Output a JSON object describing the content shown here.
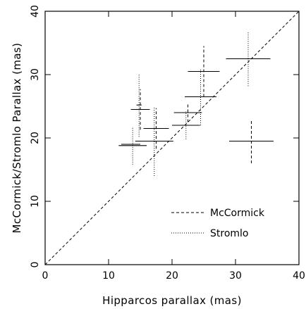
{
  "chart_data": {
    "type": "scatter",
    "xlabel": "Hipparcos parallax (mas)",
    "ylabel": "McCormick/Stromlo Parallax (mas)",
    "xlim": [
      0,
      40
    ],
    "ylim": [
      0,
      40
    ],
    "xticks": [
      0,
      10,
      20,
      30,
      40
    ],
    "yticks": [
      0,
      10,
      20,
      30,
      40
    ],
    "grid": false,
    "legend_position": "bottom-right",
    "reference_line": {
      "name": "y = x",
      "style": "dashed",
      "from": [
        0,
        0
      ],
      "to": [
        40,
        40
      ]
    },
    "series": [
      {
        "name": "McCormick",
        "line_style": "dashed",
        "points": [
          {
            "x": 15.0,
            "y": 24.5,
            "xerr": 1.5,
            "yerr": 3.2
          },
          {
            "x": 17.5,
            "y": 21.5,
            "xerr": 2.0,
            "yerr": 3.2
          },
          {
            "x": 22.5,
            "y": 24.0,
            "xerr": 2.2,
            "yerr": 1.5
          },
          {
            "x": 25.0,
            "y": 30.5,
            "xerr": 2.5,
            "yerr": 4.0
          },
          {
            "x": 32.5,
            "y": 19.5,
            "xerr": 3.5,
            "yerr": 3.5
          }
        ]
      },
      {
        "name": "Stromlo",
        "line_style": "dotted",
        "points": [
          {
            "x": 13.8,
            "y": 18.8,
            "xerr": 2.2,
            "yerr": 3.0
          },
          {
            "x": 17.2,
            "y": 19.5,
            "xerr": 3.0,
            "yerr": 5.5
          },
          {
            "x": 22.2,
            "y": 22.0,
            "xerr": 2.2,
            "yerr": 2.2
          },
          {
            "x": 24.5,
            "y": 26.5,
            "xerr": 2.5,
            "yerr": 4.5
          },
          {
            "x": 32.0,
            "y": 32.5,
            "xerr": 3.5,
            "yerr": 4.3
          },
          {
            "x": 14.8,
            "y": 25.2,
            "xerr": 0.4,
            "yerr": 5.0
          }
        ]
      }
    ],
    "extra_marks": [
      {
        "x": 13.5,
        "y": 19.0,
        "xerr": 1.5,
        "yerr": 0
      }
    ]
  }
}
